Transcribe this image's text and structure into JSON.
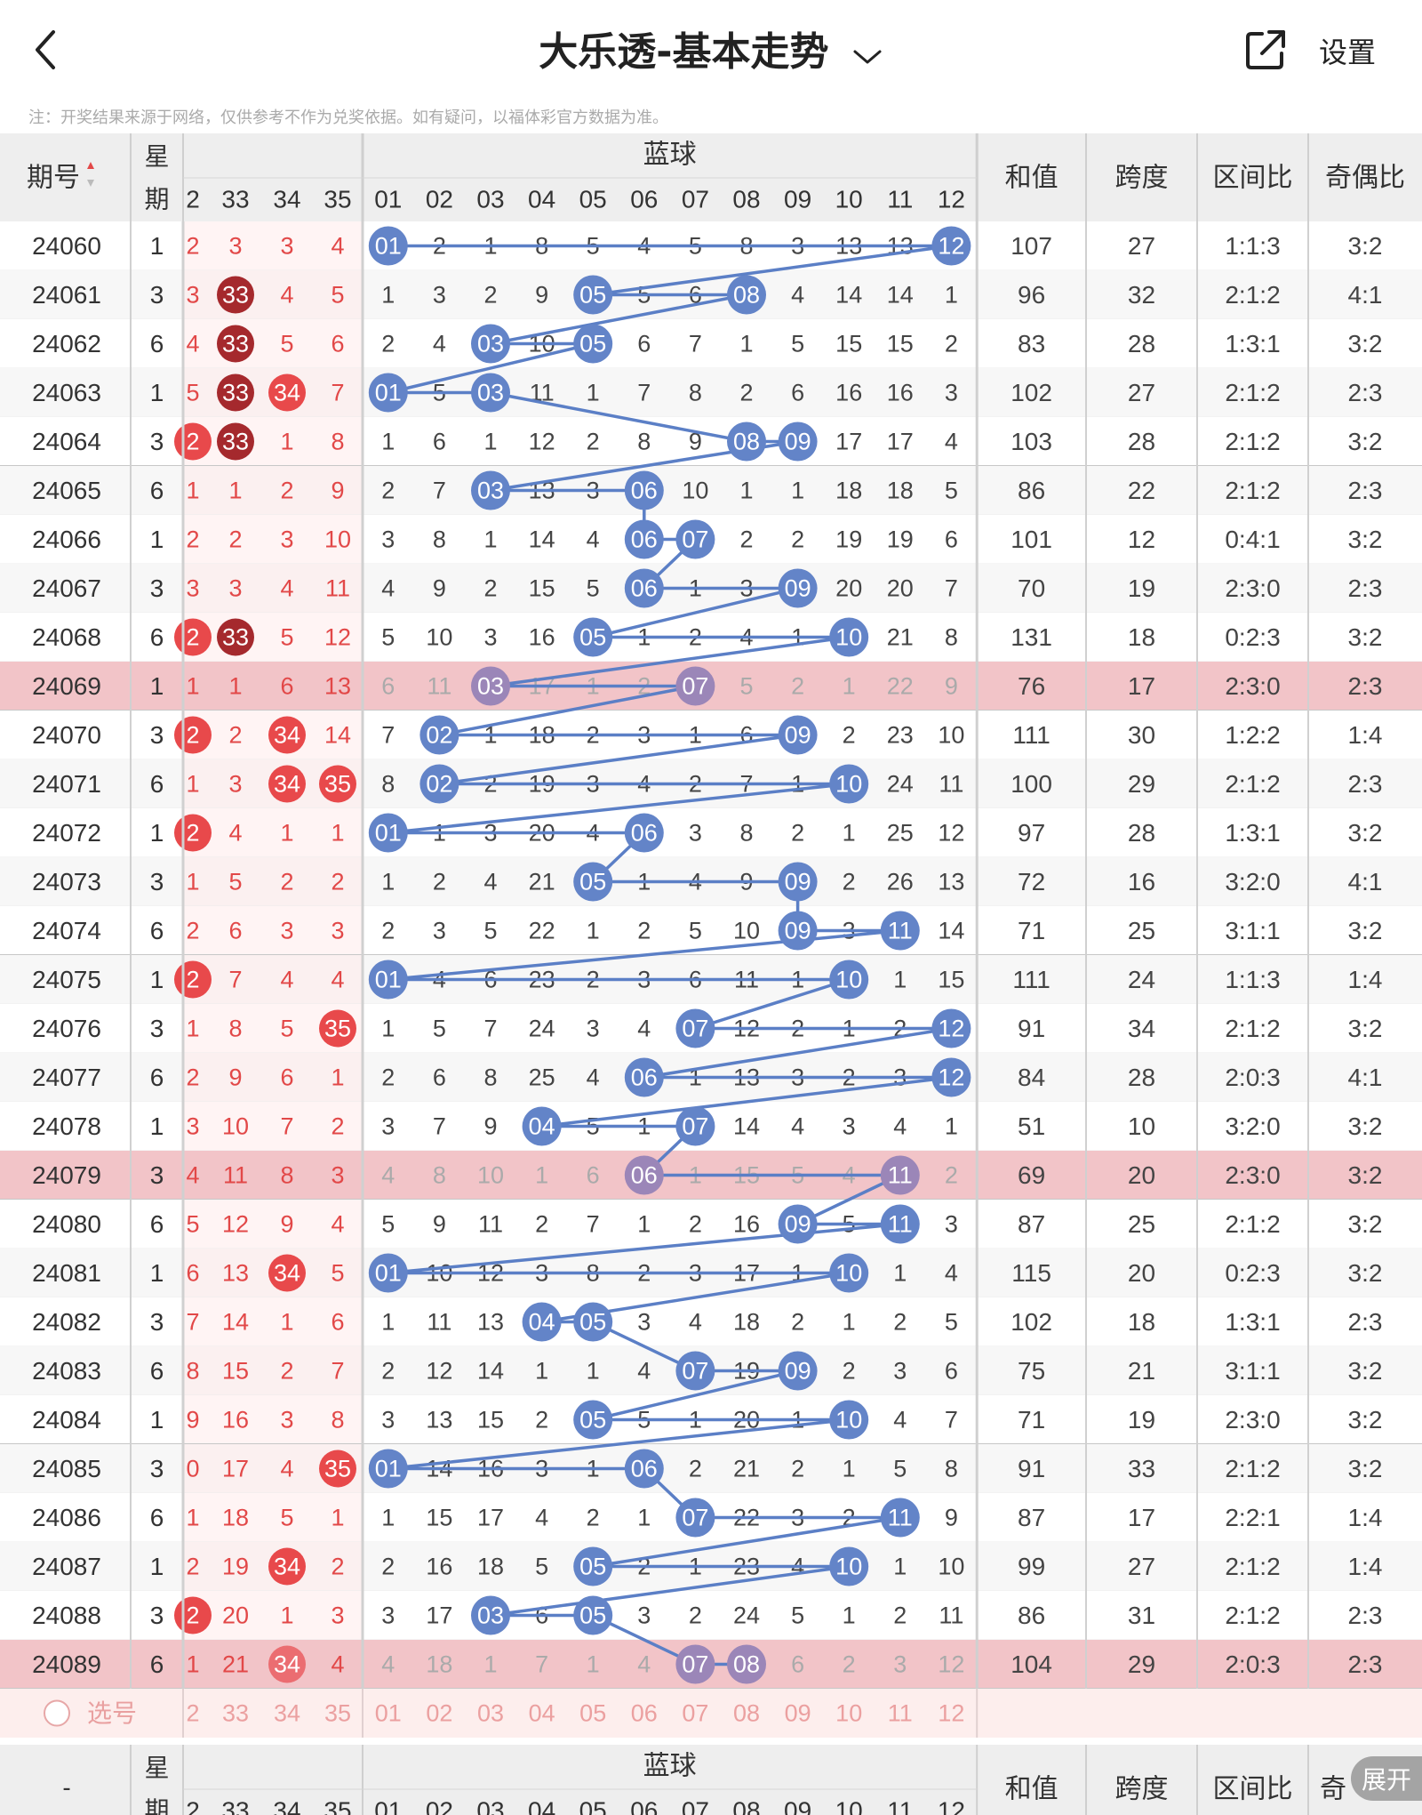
{
  "header": {
    "title": "大乐透-基本走势",
    "settings_label": "设置"
  },
  "note": "注：开奖结果来源于网络，仅供参考不作为兑奖依据。如有疑问，以福体彩官方数据为准。",
  "table": {
    "col_issue": "期号",
    "col_week_top": "星",
    "col_week_bottom": "期",
    "blue_group_label": "蓝球",
    "col_sum": "和值",
    "col_span": "跨度",
    "col_zone_ratio": "区间比",
    "col_odd_even": "奇偶比",
    "col_odd_even_short": "奇",
    "front_headers": [
      "2",
      "33",
      "34",
      "35"
    ],
    "blue_headers": [
      "01",
      "02",
      "03",
      "04",
      "05",
      "06",
      "07",
      "08",
      "09",
      "10",
      "11",
      "12"
    ],
    "rows": [
      {
        "issue": "24060",
        "week": "1",
        "front": [
          "2",
          "3",
          "3",
          "4"
        ],
        "front_hits": [],
        "blue": [
          "01",
          "2",
          "1",
          "8",
          "5",
          "4",
          "5",
          "8",
          "3",
          "13",
          "13",
          "12"
        ],
        "blue_hits": [
          1,
          12
        ],
        "sum": "107",
        "span": "27",
        "zone": "1:1:3",
        "oe": "3:2"
      },
      {
        "issue": "24061",
        "week": "3",
        "front": [
          "3",
          "33",
          "4",
          "5"
        ],
        "front_hits": [
          "33"
        ],
        "blue": [
          "1",
          "3",
          "2",
          "9",
          "05",
          "5",
          "6",
          "08",
          "4",
          "14",
          "14",
          "1"
        ],
        "blue_hits": [
          5,
          8
        ],
        "sum": "96",
        "span": "32",
        "zone": "2:1:2",
        "oe": "4:1"
      },
      {
        "issue": "24062",
        "week": "6",
        "front": [
          "4",
          "33",
          "5",
          "6"
        ],
        "front_hits": [
          "33"
        ],
        "blue": [
          "2",
          "4",
          "03",
          "10",
          "05",
          "6",
          "7",
          "1",
          "5",
          "15",
          "15",
          "2"
        ],
        "blue_hits": [
          3,
          5
        ],
        "sum": "83",
        "span": "28",
        "zone": "1:3:1",
        "oe": "3:2"
      },
      {
        "issue": "24063",
        "week": "1",
        "front": [
          "5",
          "33",
          "34",
          "7"
        ],
        "front_hits": [
          "33",
          "34"
        ],
        "blue": [
          "01",
          "5",
          "03",
          "11",
          "1",
          "7",
          "8",
          "2",
          "6",
          "16",
          "16",
          "3"
        ],
        "blue_hits": [
          1,
          3
        ],
        "sum": "102",
        "span": "27",
        "zone": "2:1:2",
        "oe": "2:3"
      },
      {
        "issue": "24064",
        "week": "3",
        "front": [
          "2",
          "33",
          "1",
          "8"
        ],
        "front_hits": [
          "2",
          "33"
        ],
        "blue": [
          "1",
          "6",
          "1",
          "12",
          "2",
          "8",
          "9",
          "08",
          "09",
          "17",
          "17",
          "4"
        ],
        "blue_hits": [
          8,
          9
        ],
        "sum": "103",
        "span": "28",
        "zone": "2:1:2",
        "oe": "3:2"
      },
      {
        "issue": "24065",
        "week": "6",
        "front": [
          "1",
          "1",
          "2",
          "9"
        ],
        "front_hits": [],
        "blue": [
          "2",
          "7",
          "03",
          "13",
          "3",
          "06",
          "10",
          "1",
          "1",
          "18",
          "18",
          "5"
        ],
        "blue_hits": [
          3,
          6
        ],
        "sum": "86",
        "span": "22",
        "zone": "2:1:2",
        "oe": "2:3"
      },
      {
        "issue": "24066",
        "week": "1",
        "front": [
          "2",
          "2",
          "3",
          "10"
        ],
        "front_hits": [],
        "blue": [
          "3",
          "8",
          "1",
          "14",
          "4",
          "06",
          "07",
          "2",
          "2",
          "19",
          "19",
          "6"
        ],
        "blue_hits": [
          6,
          7
        ],
        "sum": "101",
        "span": "12",
        "zone": "0:4:1",
        "oe": "3:2"
      },
      {
        "issue": "24067",
        "week": "3",
        "front": [
          "3",
          "3",
          "4",
          "11"
        ],
        "front_hits": [],
        "blue": [
          "4",
          "9",
          "2",
          "15",
          "5",
          "06",
          "1",
          "3",
          "09",
          "20",
          "20",
          "7"
        ],
        "blue_hits": [
          6,
          9
        ],
        "sum": "70",
        "span": "19",
        "zone": "2:3:0",
        "oe": "2:3"
      },
      {
        "issue": "24068",
        "week": "6",
        "front": [
          "2",
          "33",
          "5",
          "12"
        ],
        "front_hits": [
          "2",
          "33"
        ],
        "blue": [
          "5",
          "10",
          "3",
          "16",
          "05",
          "1",
          "2",
          "4",
          "1",
          "10",
          "21",
          "8"
        ],
        "blue_hits": [
          5,
          10
        ],
        "sum": "131",
        "span": "18",
        "zone": "0:2:3",
        "oe": "3:2"
      },
      {
        "issue": "24069",
        "week": "1",
        "front": [
          "1",
          "1",
          "6",
          "13"
        ],
        "front_hits": [],
        "blue": [
          "6",
          "11",
          "03",
          "17",
          "1",
          "2",
          "07",
          "5",
          "2",
          "1",
          "22",
          "9"
        ],
        "blue_hits": [
          3,
          7
        ],
        "sum": "76",
        "span": "17",
        "zone": "2:3:0",
        "oe": "2:3"
      },
      {
        "issue": "24070",
        "week": "3",
        "front": [
          "2",
          "2",
          "34",
          "14"
        ],
        "front_hits": [
          "2",
          "34"
        ],
        "blue": [
          "7",
          "02",
          "1",
          "18",
          "2",
          "3",
          "1",
          "6",
          "09",
          "2",
          "23",
          "10"
        ],
        "blue_hits": [
          2,
          9
        ],
        "sum": "111",
        "span": "30",
        "zone": "1:2:2",
        "oe": "1:4"
      },
      {
        "issue": "24071",
        "week": "6",
        "front": [
          "1",
          "3",
          "34",
          "35"
        ],
        "front_hits": [
          "34",
          "35"
        ],
        "blue": [
          "8",
          "02",
          "2",
          "19",
          "3",
          "4",
          "2",
          "7",
          "1",
          "10",
          "24",
          "11"
        ],
        "blue_hits": [
          2,
          10
        ],
        "sum": "100",
        "span": "29",
        "zone": "2:1:2",
        "oe": "2:3"
      },
      {
        "issue": "24072",
        "week": "1",
        "front": [
          "2",
          "4",
          "1",
          "1"
        ],
        "front_hits": [
          "2"
        ],
        "blue": [
          "01",
          "1",
          "3",
          "20",
          "4",
          "06",
          "3",
          "8",
          "2",
          "1",
          "25",
          "12"
        ],
        "blue_hits": [
          1,
          6
        ],
        "sum": "97",
        "span": "28",
        "zone": "1:3:1",
        "oe": "3:2"
      },
      {
        "issue": "24073",
        "week": "3",
        "front": [
          "1",
          "5",
          "2",
          "2"
        ],
        "front_hits": [],
        "blue": [
          "1",
          "2",
          "4",
          "21",
          "05",
          "1",
          "4",
          "9",
          "09",
          "2",
          "26",
          "13"
        ],
        "blue_hits": [
          5,
          9
        ],
        "sum": "72",
        "span": "16",
        "zone": "3:2:0",
        "oe": "4:1"
      },
      {
        "issue": "24074",
        "week": "6",
        "front": [
          "2",
          "6",
          "3",
          "3"
        ],
        "front_hits": [],
        "blue": [
          "2",
          "3",
          "5",
          "22",
          "1",
          "2",
          "5",
          "10",
          "09",
          "3",
          "11",
          "14"
        ],
        "blue_hits": [
          9,
          11
        ],
        "sum": "71",
        "span": "25",
        "zone": "3:1:1",
        "oe": "3:2"
      },
      {
        "issue": "24075",
        "week": "1",
        "front": [
          "2",
          "7",
          "4",
          "4"
        ],
        "front_hits": [
          "2"
        ],
        "blue": [
          "01",
          "4",
          "6",
          "23",
          "2",
          "3",
          "6",
          "11",
          "1",
          "10",
          "1",
          "15"
        ],
        "blue_hits": [
          1,
          10
        ],
        "sum": "111",
        "span": "24",
        "zone": "1:1:3",
        "oe": "1:4"
      },
      {
        "issue": "24076",
        "week": "3",
        "front": [
          "1",
          "8",
          "5",
          "35"
        ],
        "front_hits": [
          "35"
        ],
        "blue": [
          "1",
          "5",
          "7",
          "24",
          "3",
          "4",
          "07",
          "12",
          "2",
          "1",
          "2",
          "12"
        ],
        "blue_hits": [
          7,
          12
        ],
        "sum": "91",
        "span": "34",
        "zone": "2:1:2",
        "oe": "3:2"
      },
      {
        "issue": "24077",
        "week": "6",
        "front": [
          "2",
          "9",
          "6",
          "1"
        ],
        "front_hits": [],
        "blue": [
          "2",
          "6",
          "8",
          "25",
          "4",
          "06",
          "1",
          "13",
          "3",
          "2",
          "3",
          "12"
        ],
        "blue_hits": [
          6,
          12
        ],
        "sum": "84",
        "span": "28",
        "zone": "2:0:3",
        "oe": "4:1"
      },
      {
        "issue": "24078",
        "week": "1",
        "front": [
          "3",
          "10",
          "7",
          "2"
        ],
        "front_hits": [],
        "blue": [
          "3",
          "7",
          "9",
          "04",
          "5",
          "1",
          "07",
          "14",
          "4",
          "3",
          "4",
          "1"
        ],
        "blue_hits": [
          4,
          7
        ],
        "sum": "51",
        "span": "10",
        "zone": "3:2:0",
        "oe": "3:2"
      },
      {
        "issue": "24079",
        "week": "3",
        "front": [
          "4",
          "11",
          "8",
          "3"
        ],
        "front_hits": [],
        "blue": [
          "4",
          "8",
          "10",
          "1",
          "6",
          "06",
          "1",
          "15",
          "5",
          "4",
          "11",
          "2"
        ],
        "blue_hits": [
          6,
          11
        ],
        "sum": "69",
        "span": "20",
        "zone": "2:3:0",
        "oe": "3:2"
      },
      {
        "issue": "24080",
        "week": "6",
        "front": [
          "5",
          "12",
          "9",
          "4"
        ],
        "front_hits": [],
        "blue": [
          "5",
          "9",
          "11",
          "2",
          "7",
          "1",
          "2",
          "16",
          "09",
          "5",
          "11",
          "3"
        ],
        "blue_hits": [
          9,
          11
        ],
        "sum": "87",
        "span": "25",
        "zone": "2:1:2",
        "oe": "3:2"
      },
      {
        "issue": "24081",
        "week": "1",
        "front": [
          "6",
          "13",
          "34",
          "5"
        ],
        "front_hits": [
          "34"
        ],
        "blue": [
          "01",
          "10",
          "12",
          "3",
          "8",
          "2",
          "3",
          "17",
          "1",
          "10",
          "1",
          "4"
        ],
        "blue_hits": [
          1,
          10
        ],
        "sum": "115",
        "span": "20",
        "zone": "0:2:3",
        "oe": "3:2"
      },
      {
        "issue": "24082",
        "week": "3",
        "front": [
          "7",
          "14",
          "1",
          "6"
        ],
        "front_hits": [],
        "blue": [
          "1",
          "11",
          "13",
          "04",
          "05",
          "3",
          "4",
          "18",
          "2",
          "1",
          "2",
          "5"
        ],
        "blue_hits": [
          4,
          5
        ],
        "sum": "102",
        "span": "18",
        "zone": "1:3:1",
        "oe": "2:3"
      },
      {
        "issue": "24083",
        "week": "6",
        "front": [
          "8",
          "15",
          "2",
          "7"
        ],
        "front_hits": [],
        "blue": [
          "2",
          "12",
          "14",
          "1",
          "1",
          "4",
          "07",
          "19",
          "09",
          "2",
          "3",
          "6"
        ],
        "blue_hits": [
          7,
          9
        ],
        "sum": "75",
        "span": "21",
        "zone": "3:1:1",
        "oe": "3:2"
      },
      {
        "issue": "24084",
        "week": "1",
        "front": [
          "9",
          "16",
          "3",
          "8"
        ],
        "front_hits": [],
        "blue": [
          "3",
          "13",
          "15",
          "2",
          "05",
          "5",
          "1",
          "20",
          "1",
          "10",
          "4",
          "7"
        ],
        "blue_hits": [
          5,
          10
        ],
        "sum": "71",
        "span": "19",
        "zone": "2:3:0",
        "oe": "3:2"
      },
      {
        "issue": "24085",
        "week": "3",
        "front": [
          "0",
          "17",
          "4",
          "35"
        ],
        "front_hits": [
          "35"
        ],
        "blue": [
          "01",
          "14",
          "16",
          "3",
          "1",
          "06",
          "2",
          "21",
          "2",
          "1",
          "5",
          "8"
        ],
        "blue_hits": [
          1,
          6
        ],
        "sum": "91",
        "span": "33",
        "zone": "2:1:2",
        "oe": "3:2"
      },
      {
        "issue": "24086",
        "week": "6",
        "front": [
          "1",
          "18",
          "5",
          "1"
        ],
        "front_hits": [],
        "blue": [
          "1",
          "15",
          "17",
          "4",
          "2",
          "1",
          "07",
          "22",
          "3",
          "2",
          "11",
          "9"
        ],
        "blue_hits": [
          7,
          11
        ],
        "sum": "87",
        "span": "17",
        "zone": "2:2:1",
        "oe": "1:4"
      },
      {
        "issue": "24087",
        "week": "1",
        "front": [
          "2",
          "19",
          "34",
          "2"
        ],
        "front_hits": [
          "34"
        ],
        "blue": [
          "2",
          "16",
          "18",
          "5",
          "05",
          "2",
          "1",
          "23",
          "4",
          "10",
          "1",
          "10"
        ],
        "blue_hits": [
          5,
          10
        ],
        "sum": "99",
        "span": "27",
        "zone": "2:1:2",
        "oe": "1:4"
      },
      {
        "issue": "24088",
        "week": "3",
        "front": [
          "2",
          "20",
          "1",
          "3"
        ],
        "front_hits": [
          "2"
        ],
        "blue": [
          "3",
          "17",
          "03",
          "6",
          "05",
          "3",
          "2",
          "24",
          "5",
          "1",
          "2",
          "11"
        ],
        "blue_hits": [
          3,
          5
        ],
        "sum": "86",
        "span": "31",
        "zone": "2:1:2",
        "oe": "2:3"
      },
      {
        "issue": "24089",
        "week": "6",
        "front": [
          "1",
          "21",
          "34",
          "4"
        ],
        "front_hits": [
          "34"
        ],
        "blue": [
          "4",
          "18",
          "1",
          "7",
          "1",
          "4",
          "07",
          "08",
          "6",
          "2",
          "3",
          "12"
        ],
        "blue_hits": [
          7,
          8
        ],
        "sum": "104",
        "span": "29",
        "zone": "2:0:3",
        "oe": "2:3"
      }
    ],
    "highlight_issues": [
      "24069",
      "24079",
      "24089"
    ],
    "select_label": "选号",
    "footer_issue": "-",
    "expand_label": "展开"
  },
  "colors": {
    "blue_ball": "#6384c8",
    "blue_line": "#5b7fc6",
    "red_text": "#e24848",
    "red_ball": "#e8494b",
    "dark_red_ball": "#a5292d",
    "highlight_row": "#f2c4c8",
    "header_bg": "#eeeeee"
  }
}
